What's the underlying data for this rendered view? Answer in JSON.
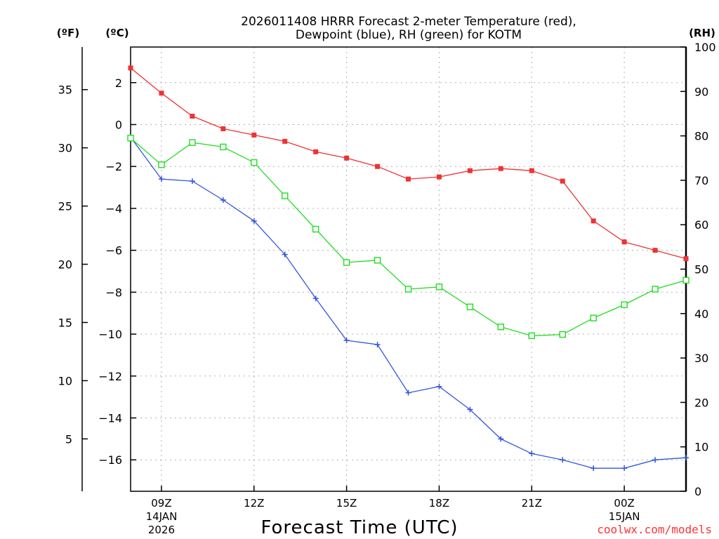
{
  "chart_data": {
    "type": "line",
    "title_line1": "2026011408 HRRR Forecast 2-meter Temperature (red),",
    "title_line2": "Dewpoint (blue), RH (green) for KOTM",
    "xlabel": "Forecast Time (UTC)",
    "credit": "coolwx.com/models",
    "units": {
      "fahrenheit": "(ºF)",
      "celsius": "(ºC)",
      "rh": "(RH)"
    },
    "x_range_hours": [
      8,
      26
    ],
    "celsius_range": [
      -17.5,
      3.7
    ],
    "fahrenheit_range": [
      0.5,
      38.66
    ],
    "rh_range": [
      0,
      100
    ],
    "celsius_ticks": [
      2,
      0,
      -2,
      -4,
      -6,
      -8,
      -10,
      -12,
      -14,
      -16
    ],
    "celsius_tick_labels": [
      "2",
      "0",
      "−2",
      "−4",
      "−6",
      "−8",
      "−10",
      "−12",
      "−14",
      "−16"
    ],
    "fahrenheit_ticks": [
      35,
      30,
      25,
      20,
      15,
      10,
      5
    ],
    "fahrenheit_tick_labels": [
      "35",
      "30",
      "25",
      "20",
      "15",
      "10",
      "5"
    ],
    "rh_ticks": [
      100,
      90,
      80,
      70,
      60,
      50,
      40,
      30,
      20,
      10,
      0
    ],
    "rh_tick_labels": [
      "100",
      "90",
      "80",
      "70",
      "60",
      "50",
      "40",
      "30",
      "20",
      "10",
      "0"
    ],
    "x_ticks": [
      {
        "hour": 9,
        "label": "09Z",
        "date": "14JAN",
        "year": "2026"
      },
      {
        "hour": 12,
        "label": "12Z",
        "date": "",
        "year": ""
      },
      {
        "hour": 15,
        "label": "15Z",
        "date": "",
        "year": ""
      },
      {
        "hour": 18,
        "label": "18Z",
        "date": "",
        "year": ""
      },
      {
        "hour": 21,
        "label": "21Z",
        "date": "",
        "year": ""
      },
      {
        "hour": 24,
        "label": "00Z",
        "date": "15JAN",
        "year": ""
      }
    ],
    "hours": [
      8,
      9,
      10,
      11,
      12,
      13,
      14,
      15,
      16,
      17,
      18,
      19,
      20,
      21,
      22,
      23,
      24,
      25,
      26
    ],
    "series": [
      {
        "name": "2-meter Temperature",
        "axis": "celsius",
        "color": "#ee3333",
        "marker": "filled-square",
        "values": [
          2.7,
          1.5,
          0.4,
          -0.2,
          -0.5,
          -0.8,
          -1.3,
          -1.6,
          -2.0,
          -2.6,
          -2.5,
          -2.2,
          -2.1,
          -2.2,
          -2.7,
          -4.6,
          -5.6,
          -6.0,
          -6.4
        ]
      },
      {
        "name": "Dewpoint",
        "axis": "celsius",
        "color": "#3355dd",
        "marker": "plus",
        "values": [
          -0.6,
          -2.6,
          -2.7,
          -3.6,
          -4.6,
          -6.2,
          -8.3,
          -10.3,
          -10.5,
          -12.8,
          -12.5,
          -13.6,
          -15.0,
          -15.7,
          -16.0,
          -16.4,
          -16.4,
          -16.0,
          -15.9
        ]
      },
      {
        "name": "RH",
        "axis": "rh",
        "color": "#22dd22",
        "marker": "open-square",
        "values": [
          79.5,
          73.5,
          78.5,
          77.5,
          74.0,
          66.5,
          59.0,
          51.5,
          52.0,
          45.5,
          46.0,
          41.5,
          37.0,
          35.0,
          35.3,
          39.0,
          42.0,
          45.5,
          47.5
        ]
      }
    ]
  }
}
